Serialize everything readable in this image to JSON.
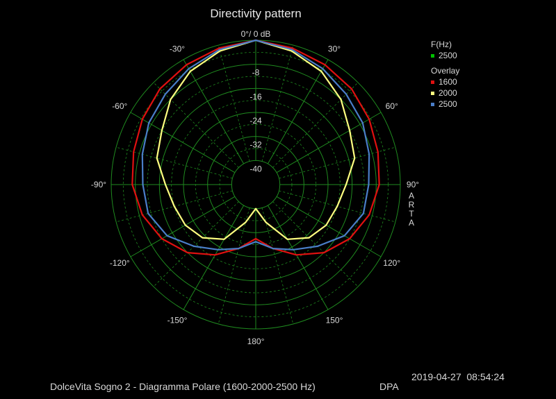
{
  "chart_data": {
    "type": "polar",
    "title": "Directivity pattern",
    "radial_unit": "dB",
    "radial_ticks": [
      "0°/ 0 dB",
      "-8",
      "-16",
      "-24",
      "-32",
      "-40"
    ],
    "radial_range": [
      -48,
      0
    ],
    "angle_ticks": [
      {
        "angle": -30,
        "label": "-30°"
      },
      {
        "angle": 30,
        "label": "30°"
      },
      {
        "angle": -60,
        "label": "-60°"
      },
      {
        "angle": 60,
        "label": "60°"
      },
      {
        "angle": -90,
        "label": "-90°"
      },
      {
        "angle": 90,
        "label": "90°"
      },
      {
        "angle": -120,
        "label": "-120°"
      },
      {
        "angle": 120,
        "label": "120°"
      },
      {
        "angle": -150,
        "label": "-150°"
      },
      {
        "angle": 150,
        "label": "150°"
      },
      {
        "angle": 180,
        "label": "180°"
      }
    ],
    "grid": true,
    "legend": {
      "freq_header": "F(Hz)",
      "freq_value": "2500",
      "freq_color": "#00c000",
      "overlay_header": "Overlay",
      "entries": [
        {
          "name": "1600",
          "color": "#e01010"
        },
        {
          "name": "2000",
          "color": "#ffff80"
        },
        {
          "name": "2500",
          "color": "#4a7ec8"
        }
      ]
    },
    "angles": [
      0,
      15,
      30,
      45,
      60,
      75,
      90,
      105,
      120,
      135,
      150,
      165,
      180
    ],
    "series": [
      {
        "name": "1600",
        "color": "#e01010",
        "values": [
          0,
          -1,
          -2,
          -3,
          -4.5,
          -6,
          -7,
          -9,
          -12,
          -16,
          -21,
          -26,
          -30
        ]
      },
      {
        "name": "2000",
        "color": "#ffff80",
        "values": [
          0,
          -2,
          -4.5,
          -8,
          -12,
          -14,
          -18,
          -20,
          -21,
          -23,
          -27,
          -35,
          -40
        ]
      },
      {
        "name": "2500",
        "color": "#4a7ec8",
        "values": [
          0,
          -1.5,
          -3.5,
          -5.5,
          -7,
          -9,
          -10.5,
          -11,
          -14,
          -19,
          -23,
          -26,
          -29
        ]
      }
    ]
  },
  "side_label": [
    "A",
    "R",
    "T",
    "A"
  ],
  "footer": "DolceVita Sogno 2 - Diagramma Polare (1600-2000-2500 Hz)",
  "tag": "DPA",
  "timestamp": "2019-04-27  08:54:24"
}
